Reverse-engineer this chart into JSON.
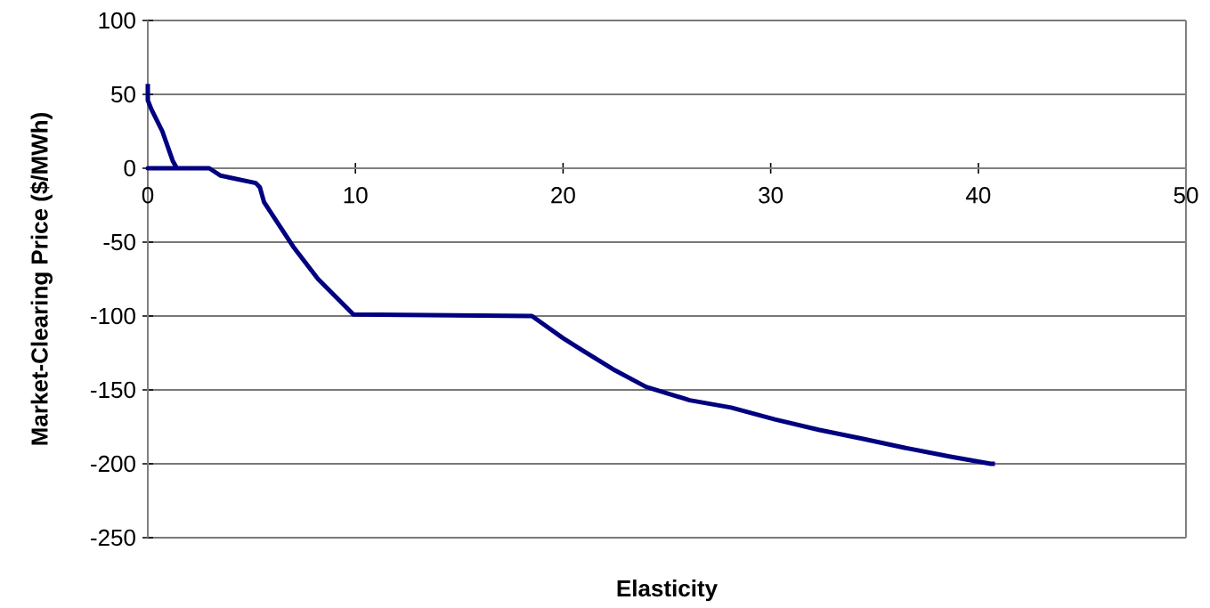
{
  "chart_data": {
    "type": "line",
    "xlabel": "Elasticity",
    "ylabel": "Market-Clearing Price ($/MWh)",
    "series": [
      {
        "color": "#000080",
        "x": [
          0,
          0,
          0.17,
          0.7,
          1.0,
          1.2,
          1.4,
          0,
          2.96,
          3.5,
          5.2,
          5.4,
          5.6,
          7.0,
          8.2,
          9.9,
          18.5,
          19.3,
          20.0,
          20.9,
          22.4,
          24.0,
          26.1,
          28.1,
          30.2,
          32.3,
          34.4,
          36.4,
          38.6,
          40.6,
          40.8
        ],
        "values": [
          57,
          46,
          40,
          25,
          13,
          5,
          0,
          0,
          0,
          -5,
          -10,
          -13,
          -23,
          -53,
          -75,
          -99,
          -100,
          -108,
          -115,
          -123,
          -136,
          -148,
          -157,
          -162,
          -170,
          -177,
          -183,
          -189,
          -195,
          -200,
          -200
        ]
      }
    ],
    "xlim": [
      0,
      50
    ],
    "xticks": [
      0,
      10,
      20,
      30,
      40,
      50
    ],
    "ylim": [
      -250,
      100
    ],
    "yticks": [
      -250,
      -200,
      -150,
      -100,
      -50,
      0,
      50,
      100
    ],
    "grid": "y",
    "marker": "none",
    "line_style": "solid"
  }
}
